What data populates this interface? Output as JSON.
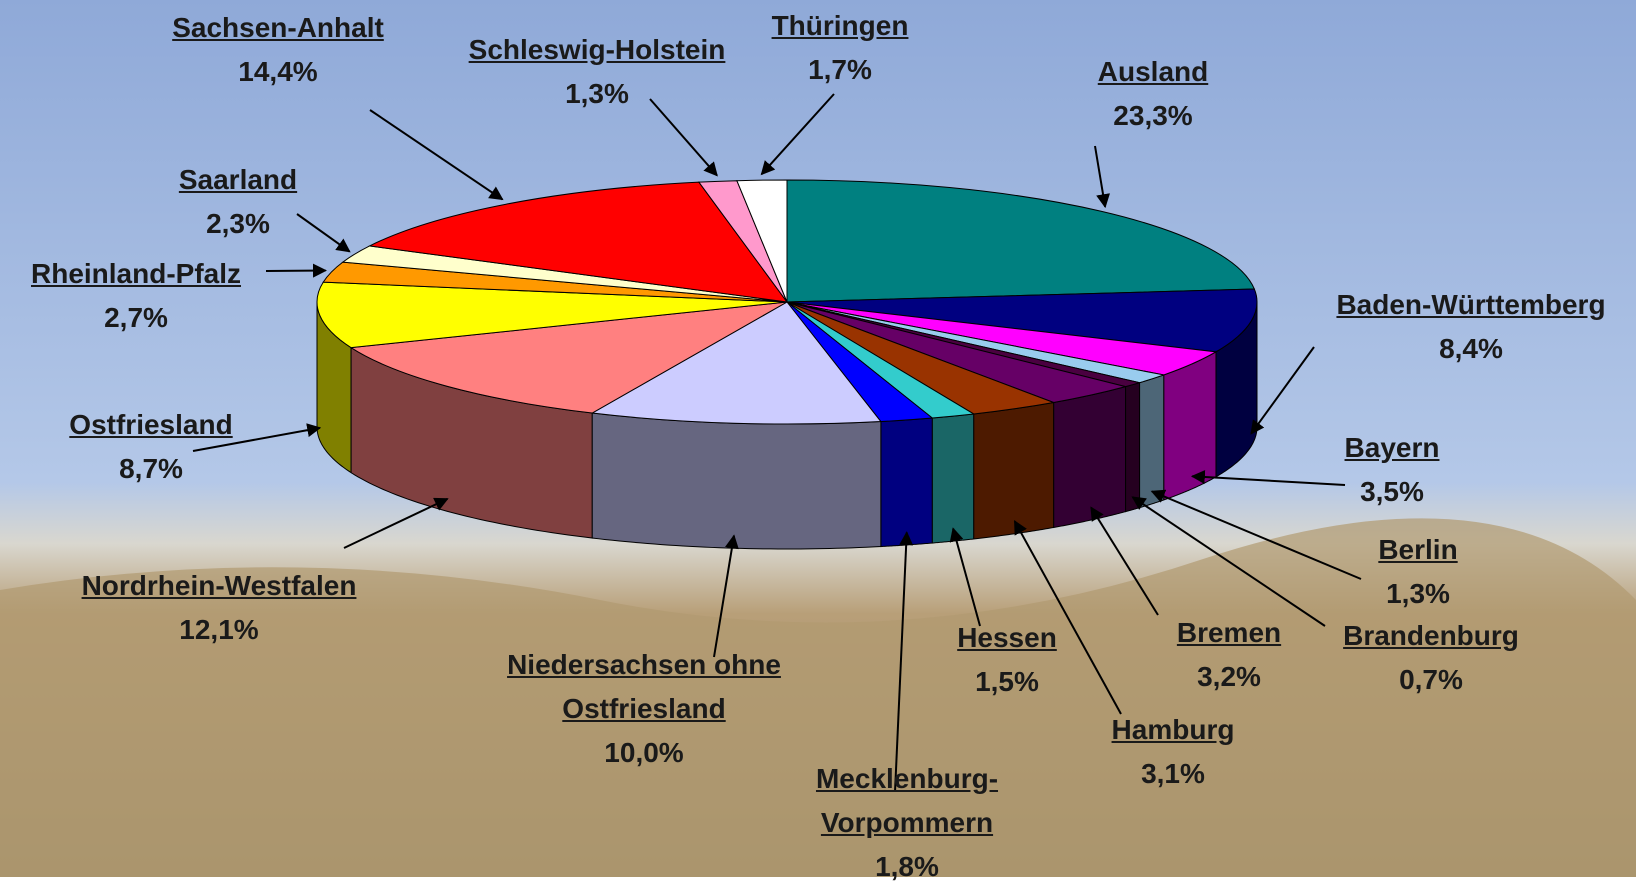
{
  "chart_data": {
    "type": "pie3d",
    "categories": [
      "Ausland",
      "Baden-Württemberg",
      "Bayern",
      "Berlin",
      "Brandenburg",
      "Bremen",
      "Hamburg",
      "Hessen",
      "Mecklenburg-Vorpommern",
      "Niedersachsen ohne Ostfriesland",
      "Nordrhein-Westfalen",
      "Ostfriesland",
      "Rheinland-Pfalz",
      "Saarland",
      "Sachsen-Anhalt",
      "Schleswig-Holstein",
      "Thüringen"
    ],
    "values": [
      23.3,
      8.4,
      3.5,
      1.3,
      0.7,
      3.2,
      3.1,
      1.5,
      1.8,
      10.0,
      12.1,
      8.7,
      2.7,
      2.3,
      14.4,
      1.3,
      1.7
    ],
    "value_labels": [
      "23,3%",
      "8,4%",
      "3,5%",
      "1,3%",
      "0,7%",
      "3,2%",
      "3,1%",
      "1,5%",
      "1,8%",
      "10,0%",
      "12,1%",
      "8,7%",
      "2,7%",
      "2,3%",
      "14,4%",
      "1,3%",
      "1,7%"
    ],
    "colors": [
      "#008080",
      "#000080",
      "#ff00ff",
      "#99ccee",
      "#4a0040",
      "#660066",
      "#993300",
      "#33cccc",
      "#0000ff",
      "#ccccff",
      "#ff8080",
      "#ffff00",
      "#ff9900",
      "#ffffcc",
      "#ff0000",
      "#ff99cc",
      "#ffffff"
    ]
  }
}
